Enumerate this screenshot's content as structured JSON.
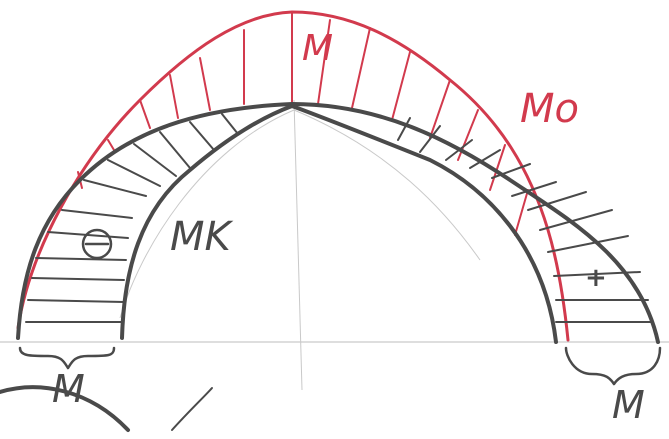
{
  "labels": {
    "crown_moment": "M",
    "outer_curve": "Mo",
    "inner_curve": "MK",
    "left_support": "M",
    "right_support": "M",
    "left_sign": "⊖",
    "right_sign": "+"
  },
  "colors": {
    "red": "#d23a4d",
    "dark": "#4a4a4a",
    "light": "#c9c9c9"
  }
}
